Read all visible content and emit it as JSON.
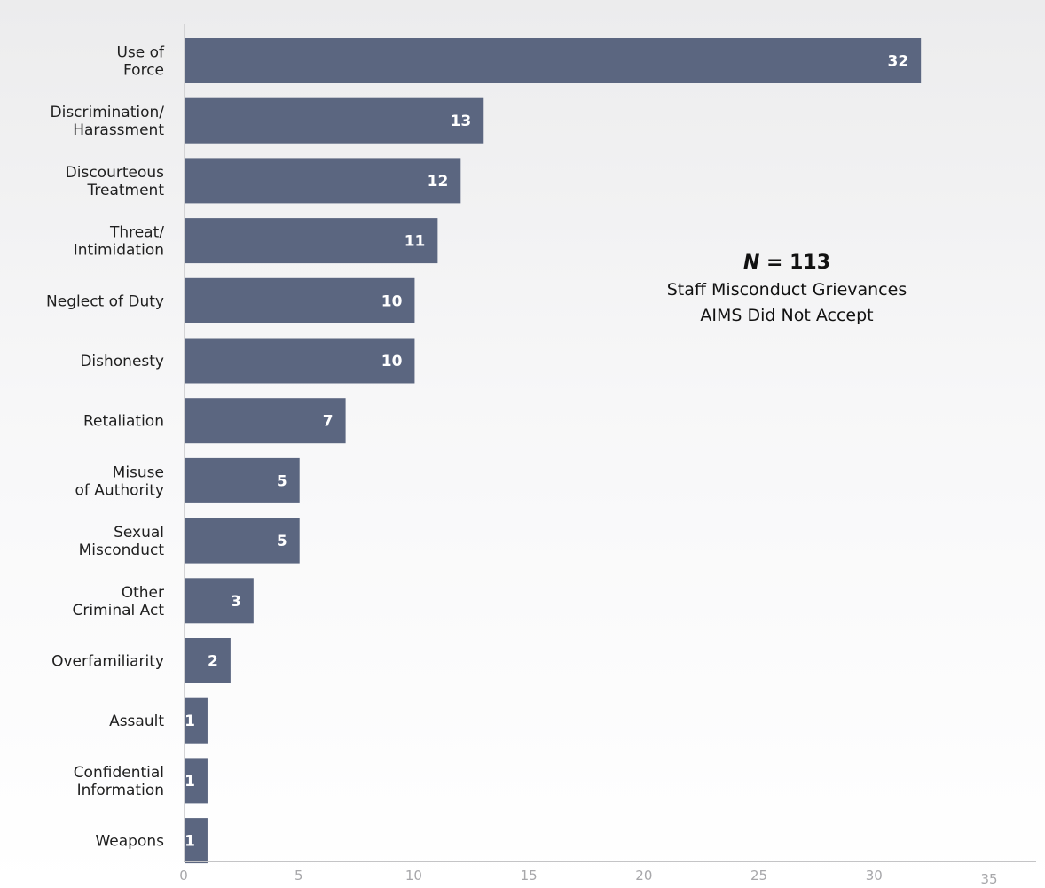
{
  "chart_data": {
    "type": "bar",
    "orientation": "horizontal",
    "categories": [
      [
        "Use of",
        "Force"
      ],
      [
        "Discrimination/",
        "Harassment"
      ],
      [
        "Discourteous",
        "Treatment"
      ],
      [
        "Threat/",
        "Intimidation"
      ],
      [
        "Neglect of Duty"
      ],
      [
        "Dishonesty"
      ],
      [
        "Retaliation"
      ],
      [
        "Misuse",
        "of Authority"
      ],
      [
        "Sexual",
        "Misconduct"
      ],
      [
        "Other",
        "Criminal Act"
      ],
      [
        "Overfamiliarity"
      ],
      [
        "Assault"
      ],
      [
        "Confidential",
        "Information"
      ],
      [
        "Weapons"
      ]
    ],
    "values": [
      32,
      13,
      12,
      11,
      10,
      10,
      7,
      5,
      5,
      3,
      2,
      1,
      1,
      1
    ],
    "xlim": [
      0,
      35
    ],
    "x_ticks": [
      "0",
      "5",
      "10",
      "15",
      "20",
      "25",
      "30",
      "35"
    ],
    "bar_color": "#5b6680",
    "annotation": {
      "n_symbol": "N",
      "n_rest": " = 113",
      "lines": [
        "Staff Misconduct Grievances",
        "AIMS Did Not Accept"
      ]
    },
    "grid": false,
    "legend": "none"
  }
}
